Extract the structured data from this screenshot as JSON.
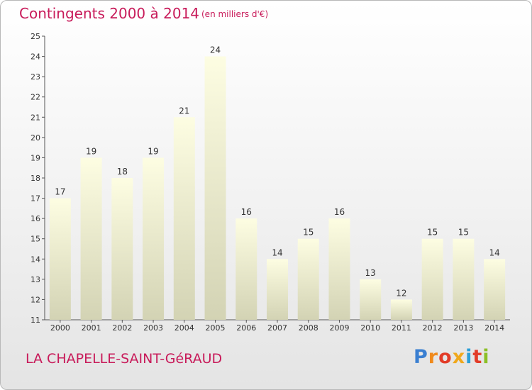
{
  "header": {
    "title": "Contingents 2000 à 2014",
    "subtitle": "(en milliers d'€)"
  },
  "footer": {
    "commune": "LA CHAPELLE-SAINT-GéRAUD",
    "logo_letters": [
      "P",
      "r",
      "o",
      "x",
      "i",
      "t",
      "i"
    ],
    "logo_colors": [
      "#3a7fd1",
      "#f08a1c",
      "#e23c28",
      "#f0a81c",
      "#2b9fd8",
      "#e23c28",
      "#8cbf26"
    ]
  },
  "chart_data": {
    "type": "bar",
    "title": "Contingents 2000 à 2014",
    "subtitle": "(en milliers d'€)",
    "categories": [
      "2000",
      "2001",
      "2002",
      "2003",
      "2004",
      "2005",
      "2006",
      "2007",
      "2008",
      "2009",
      "2010",
      "2011",
      "2012",
      "2013",
      "2014"
    ],
    "values": [
      17,
      19,
      18,
      19,
      21,
      24,
      16,
      14,
      15,
      16,
      13,
      12,
      15,
      15,
      14
    ],
    "ylim": [
      11,
      25
    ],
    "yticks": [
      11,
      12,
      13,
      14,
      15,
      16,
      17,
      18,
      19,
      20,
      21,
      22,
      23,
      24,
      25
    ],
    "xlabel": "",
    "ylabel": "",
    "grid": false,
    "colors": {
      "bar_top": "#fdfde2",
      "bar_bottom": "#d3d3b4",
      "axis": "#555555",
      "accent": "#c81b5a"
    }
  }
}
